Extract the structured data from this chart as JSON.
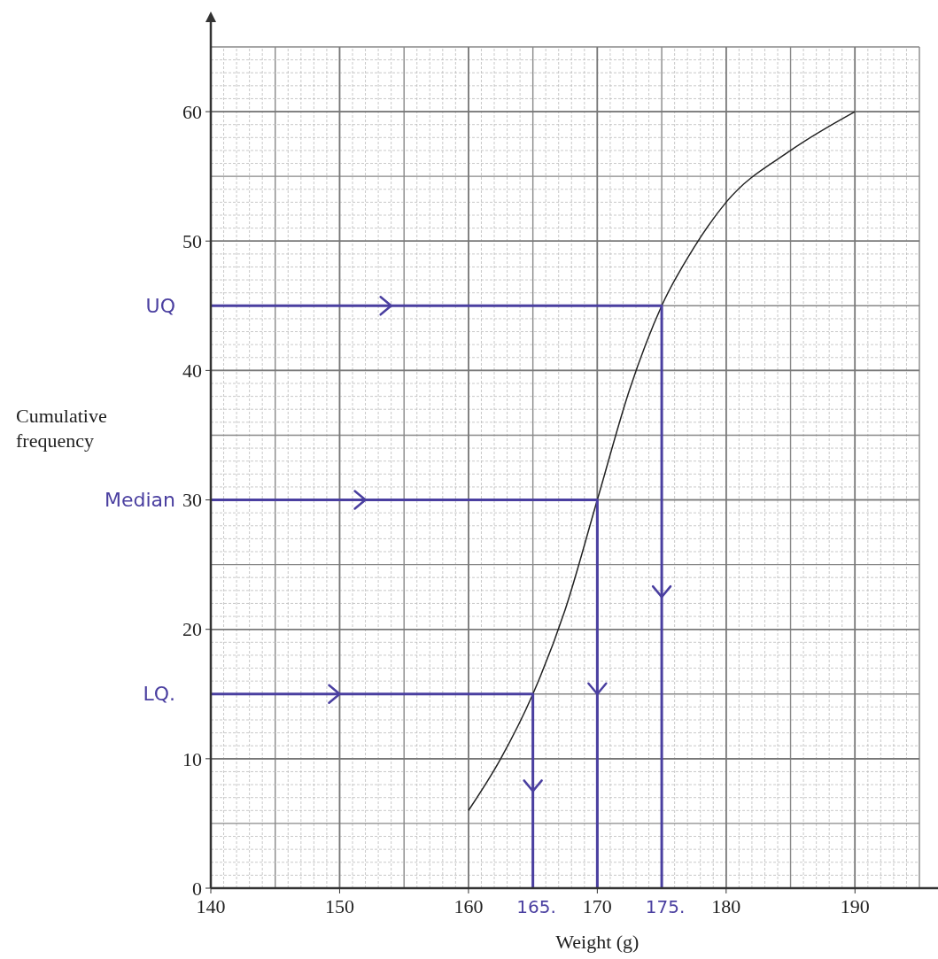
{
  "chart_data": {
    "type": "line",
    "xlabel": "Weight (g)",
    "ylabel": "Cumulative frequency",
    "xlim": [
      140,
      195
    ],
    "ylim": [
      0,
      65
    ],
    "xticks": [
      140,
      150,
      160,
      170,
      180,
      190
    ],
    "yticks": [
      0,
      10,
      20,
      30,
      40,
      50,
      60
    ],
    "grid": true,
    "series": [
      {
        "color": "#222222",
        "x": [
          160,
          162.5,
          165,
          167.5,
          170,
          172.5,
          175,
          177.5,
          180,
          185,
          190
        ],
        "values": [
          6,
          10,
          15,
          21.5,
          30,
          38.5,
          45,
          49.5,
          53,
          57,
          60
        ]
      },
      {
        "color": "#4a3fa0",
        "x": [
          140,
          175,
          175
        ],
        "values": [
          45,
          45,
          0
        ]
      },
      {
        "color": "#4a3fa0",
        "x": [
          140,
          170,
          170
        ],
        "values": [
          30,
          30,
          0
        ]
      },
      {
        "color": "#4a3fa0",
        "x": [
          140,
          165,
          165
        ],
        "values": [
          15,
          15,
          0
        ]
      }
    ],
    "annotations": [
      {
        "text": "UQ",
        "x": 140,
        "y": 45
      },
      {
        "text": "Median",
        "x": 140,
        "y": 30
      },
      {
        "text": "LQ.",
        "x": 140,
        "y": 15
      },
      {
        "text": "165.",
        "x": 165,
        "y": 0
      },
      {
        "text": "175.",
        "x": 175,
        "y": 0
      }
    ]
  }
}
